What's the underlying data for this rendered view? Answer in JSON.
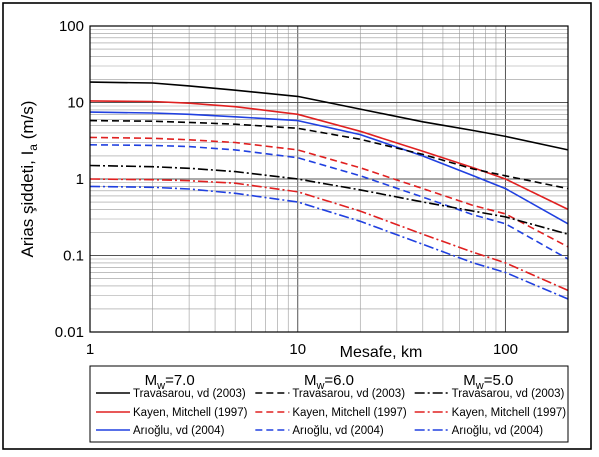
{
  "chart_data": {
    "type": "line",
    "x_scale": "log",
    "y_scale": "log",
    "xlim": [
      1,
      200
    ],
    "ylim": [
      0.01,
      100
    ],
    "xlabel": "Mesafe, km",
    "ylabel": "Arias şiddeti, I",
    "ylabel_subscript": "a",
    "ylabel_unit": "(m/s)",
    "grid": true,
    "x_ticks": [
      {
        "value": 1,
        "label": "1"
      },
      {
        "value": 10,
        "label": "10"
      },
      {
        "value": 100,
        "label": "100"
      }
    ],
    "y_ticks": [
      {
        "value": 0.01,
        "label": "0.01"
      },
      {
        "value": 0.1,
        "label": "0.1"
      },
      {
        "value": 1,
        "label": "1"
      },
      {
        "value": 10,
        "label": "10"
      },
      {
        "value": 100,
        "label": "100"
      }
    ],
    "legend_groups": [
      {
        "m_main": "M",
        "m_sub": "w",
        "m_value": "=7.0"
      },
      {
        "m_main": "M",
        "m_sub": "w",
        "m_value": "=6.0"
      },
      {
        "m_main": "M",
        "m_sub": "w",
        "m_value": "=5.0"
      }
    ],
    "series": [
      {
        "name": "Travasarou, vd (2003)",
        "group": 0,
        "color": "#000000",
        "dash": "solid",
        "points": [
          [
            1,
            18.5
          ],
          [
            2,
            18
          ],
          [
            3,
            16.5
          ],
          [
            5,
            14.5
          ],
          [
            10,
            12
          ],
          [
            20,
            8.2
          ],
          [
            40,
            5.6
          ],
          [
            70,
            4.3
          ],
          [
            100,
            3.6
          ],
          [
            200,
            2.4
          ]
        ]
      },
      {
        "name": "Kayen, Mitchell (1997)",
        "group": 0,
        "color": "#e02020",
        "dash": "solid",
        "points": [
          [
            1,
            10.5
          ],
          [
            2,
            10.3
          ],
          [
            3,
            9.8
          ],
          [
            5,
            8.8
          ],
          [
            10,
            7
          ],
          [
            20,
            4.2
          ],
          [
            40,
            2.3
          ],
          [
            70,
            1.4
          ],
          [
            100,
            1.0
          ],
          [
            200,
            0.4
          ]
        ]
      },
      {
        "name": "Arıoğlu, vd (2004)",
        "group": 0,
        "color": "#2040e0",
        "dash": "solid",
        "points": [
          [
            1,
            7.5
          ],
          [
            2,
            7.3
          ],
          [
            3,
            7.0
          ],
          [
            5,
            6.5
          ],
          [
            10,
            5.8
          ],
          [
            20,
            3.8
          ],
          [
            40,
            2.0
          ],
          [
            70,
            1.1
          ],
          [
            100,
            0.75
          ],
          [
            200,
            0.26
          ]
        ]
      },
      {
        "name": "Travasarou, vd (2003)",
        "group": 1,
        "color": "#000000",
        "dash": "dash",
        "points": [
          [
            1,
            5.8
          ],
          [
            2,
            5.7
          ],
          [
            3,
            5.5
          ],
          [
            5,
            5.2
          ],
          [
            10,
            4.6
          ],
          [
            20,
            3.3
          ],
          [
            40,
            2.1
          ],
          [
            70,
            1.35
          ],
          [
            100,
            1.1
          ],
          [
            200,
            0.75
          ]
        ]
      },
      {
        "name": "Kayen, Mitchell (1997)",
        "group": 1,
        "color": "#e02020",
        "dash": "dash",
        "points": [
          [
            1,
            3.5
          ],
          [
            2,
            3.4
          ],
          [
            3,
            3.25
          ],
          [
            5,
            3.0
          ],
          [
            10,
            2.4
          ],
          [
            20,
            1.4
          ],
          [
            40,
            0.75
          ],
          [
            70,
            0.45
          ],
          [
            100,
            0.35
          ],
          [
            200,
            0.13
          ]
        ]
      },
      {
        "name": "Arıoğlu, vd (2004)",
        "group": 1,
        "color": "#2040e0",
        "dash": "dash",
        "points": [
          [
            1,
            2.8
          ],
          [
            2,
            2.75
          ],
          [
            3,
            2.65
          ],
          [
            5,
            2.4
          ],
          [
            10,
            1.9
          ],
          [
            20,
            1.1
          ],
          [
            40,
            0.58
          ],
          [
            70,
            0.34
          ],
          [
            100,
            0.26
          ],
          [
            200,
            0.09
          ]
        ]
      },
      {
        "name": "Travasarou, vd (2003)",
        "group": 2,
        "color": "#000000",
        "dash": "dashdot",
        "points": [
          [
            1,
            1.5
          ],
          [
            2,
            1.45
          ],
          [
            3,
            1.38
          ],
          [
            5,
            1.25
          ],
          [
            10,
            1.0
          ],
          [
            20,
            0.72
          ],
          [
            40,
            0.5
          ],
          [
            70,
            0.38
          ],
          [
            100,
            0.32
          ],
          [
            200,
            0.19
          ]
        ]
      },
      {
        "name": "Kayen, Mitchell (1997)",
        "group": 2,
        "color": "#e02020",
        "dash": "dashdot",
        "points": [
          [
            1,
            1.0
          ],
          [
            2,
            0.98
          ],
          [
            3,
            0.95
          ],
          [
            5,
            0.88
          ],
          [
            10,
            0.68
          ],
          [
            20,
            0.38
          ],
          [
            40,
            0.19
          ],
          [
            70,
            0.11
          ],
          [
            100,
            0.08
          ],
          [
            200,
            0.035
          ]
        ]
      },
      {
        "name": "Arıoğlu, vd (2004)",
        "group": 2,
        "color": "#2040e0",
        "dash": "dashdot",
        "points": [
          [
            1,
            0.8
          ],
          [
            2,
            0.78
          ],
          [
            3,
            0.74
          ],
          [
            5,
            0.65
          ],
          [
            10,
            0.5
          ],
          [
            20,
            0.28
          ],
          [
            40,
            0.14
          ],
          [
            70,
            0.08
          ],
          [
            100,
            0.06
          ],
          [
            200,
            0.027
          ]
        ]
      }
    ]
  }
}
